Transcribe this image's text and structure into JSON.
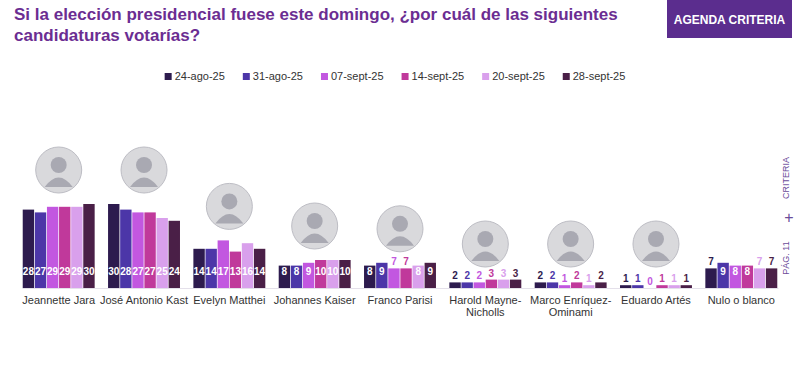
{
  "chart_data": {
    "type": "bar",
    "title": "Si la elección presidencial fuese este domingo, ¿por cuál de las siguientes candidaturas votarías?",
    "annotations": [
      "AGENDA CRITERIA",
      "CRITERIA",
      "+",
      "PÁG. 11"
    ],
    "categories": [
      "Jeannette Jara",
      "José Antonio Kast",
      "Evelyn Matthei",
      "Johannes Kaiser",
      "Franco Parisi",
      "Harold Mayne-Nicholls",
      "Marco Enríquez-Ominami",
      "Eduardo Artés",
      "Nulo o blanco"
    ],
    "series": [
      {
        "name": "24-ago-25",
        "color": "#2d1b4e",
        "values": [
          28,
          30,
          14,
          8,
          8,
          2,
          2,
          1,
          7
        ]
      },
      {
        "name": "31-ago-25",
        "color": "#4c36a8",
        "values": [
          27,
          28,
          14,
          8,
          9,
          2,
          2,
          1,
          9
        ]
      },
      {
        "name": "07-sept-25",
        "color": "#c257e0",
        "values": [
          29,
          27,
          17,
          9,
          7,
          2,
          1,
          0,
          8
        ]
      },
      {
        "name": "14-sept-25",
        "color": "#c0399b",
        "values": [
          29,
          27,
          13,
          10,
          7,
          3,
          2,
          1,
          8
        ]
      },
      {
        "name": "20-sept-25",
        "color": "#d9a0ec",
        "values": [
          29,
          25,
          16,
          10,
          8,
          3,
          1,
          1,
          7
        ]
      },
      {
        "name": "28-sept-25",
        "color": "#4a1f47",
        "values": [
          30,
          24,
          14,
          10,
          9,
          3,
          2,
          1,
          7
        ]
      }
    ],
    "ylim": [
      0,
      30
    ],
    "tick_labels": "x",
    "data_labels": true,
    "legend": "top",
    "grid": false
  }
}
